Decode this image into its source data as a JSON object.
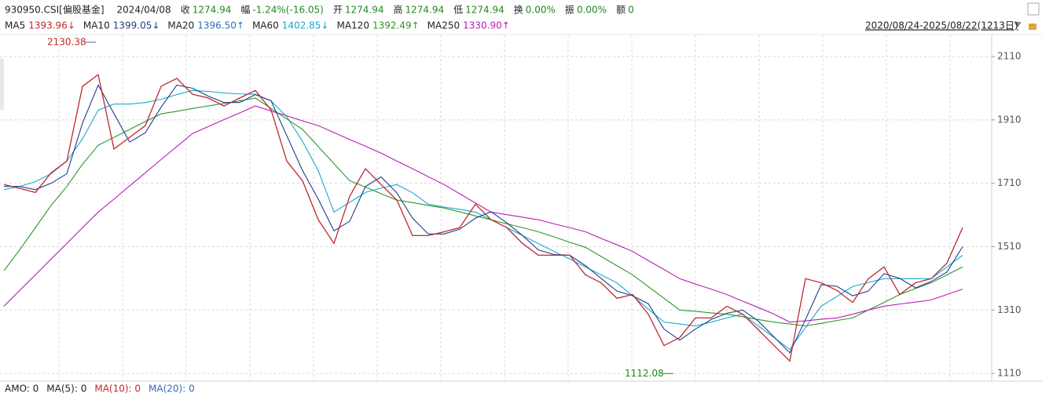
{
  "header": {
    "code": "930950.CSI[偏股基金]",
    "date": "2024/04/08",
    "fields": [
      {
        "label": "收",
        "value": "1274.94"
      },
      {
        "label": "幅",
        "value": "-1.24%(-16.05)"
      },
      {
        "label": "开",
        "value": "1274.94"
      },
      {
        "label": "高",
        "value": "1274.94"
      },
      {
        "label": "低",
        "value": "1274.94"
      },
      {
        "label": "换",
        "value": "0.00%"
      },
      {
        "label": "振",
        "value": "0.00%"
      },
      {
        "label": "额",
        "value": "0"
      }
    ],
    "range": "2020/08/24-2025/08/22(1213日)"
  },
  "ma_legend": [
    {
      "name": "MA5",
      "value": "1393.96↓",
      "color": "#c0282d"
    },
    {
      "name": "MA10",
      "value": "1399.05↓",
      "color": "#1d3f8c"
    },
    {
      "name": "MA20",
      "value": "1396.50↑",
      "color": "#2f6db8"
    },
    {
      "name": "MA60",
      "value": "1402.85↓",
      "color": "#1aa8cc"
    },
    {
      "name": "MA120",
      "value": "1392.49↑",
      "color": "#2b962b"
    },
    {
      "name": "MA250",
      "value": "1330.90↑",
      "color": "#b81cb8"
    }
  ],
  "footer": [
    {
      "text": "AMO: 0",
      "color": "#222222"
    },
    {
      "text": "MA(5): 0",
      "color": "#222222"
    },
    {
      "text": "MA(10): 0",
      "color": "#c0282d"
    },
    {
      "text": "MA(20): 0",
      "color": "#2f6db8"
    }
  ],
  "chart_data": {
    "type": "line",
    "categories": [
      null,
      null,
      null,
      null,
      null,
      null,
      null,
      null,
      null,
      null,
      null,
      null,
      null,
      null,
      null,
      null,
      null,
      null,
      null,
      null,
      null,
      null,
      null,
      null,
      null,
      null,
      null,
      null,
      null,
      null,
      null,
      null,
      null,
      null,
      null,
      null,
      null,
      null,
      null,
      null,
      null,
      null,
      null,
      null,
      null,
      null,
      null,
      null,
      null,
      null,
      null,
      null,
      null,
      null,
      null,
      null,
      null,
      null,
      null,
      null,
      null,
      null
    ],
    "ylim": [
      1088,
      2177
    ],
    "yticks": [
      1110,
      1310,
      1510,
      1710,
      1910,
      2110
    ],
    "grid": true,
    "high": 2130.38,
    "low": 1112.08,
    "series": [
      {
        "color": "#1aa8cc",
        "values": [
          1690,
          1700,
          1715,
          1740,
          1780,
          1850,
          1941,
          1960,
          1960,
          1965,
          1975,
          1990,
          2003,
          2000,
          1995,
          1992,
          1991,
          1970,
          1920,
          1842,
          1750,
          1619,
          1650,
          1681,
          1695,
          1706,
          1680,
          1644,
          1635,
          1628,
          1619,
          1595,
          1570,
          1545,
          1520,
          1495,
          1471,
          1446,
          1421,
          1396,
          1355,
          1313,
          1272,
          1266,
          1260,
          1272,
          1285,
          1297,
          1260,
          1223,
          1186,
          1255,
          1322,
          1353,
          1384,
          1397,
          1409,
          1409,
          1409,
          1409,
          1446,
          1483
        ]
      },
      {
        "color": "#2b962b",
        "values": [
          1434,
          1500,
          1570,
          1640,
          1700,
          1770,
          1830,
          1855,
          1880,
          1905,
          1929,
          1937,
          1946,
          1954,
          1962,
          1970,
          1979,
          1946,
          1913,
          1880,
          1826,
          1772,
          1718,
          1698,
          1677,
          1657,
          1649,
          1640,
          1632,
          1620,
          1607,
          1595,
          1582,
          1570,
          1557,
          1541,
          1524,
          1508,
          1479,
          1450,
          1421,
          1384,
          1347,
          1310,
          1306,
          1301,
          1297,
          1289,
          1280,
          1272,
          1266,
          1260,
          1268,
          1277,
          1285,
          1310,
          1334,
          1359,
          1378,
          1396,
          1421,
          1446
        ]
      },
      {
        "color": "#b81cb8",
        "values": [
          1322,
          1372,
          1421,
          1471,
          1520,
          1570,
          1619,
          1660,
          1702,
          1743,
          1785,
          1826,
          1867,
          1889,
          1911,
          1932,
          1954,
          1938,
          1923,
          1907,
          1892,
          1870,
          1848,
          1827,
          1805,
          1780,
          1756,
          1731,
          1706,
          1677,
          1648,
          1619,
          1611,
          1603,
          1595,
          1582,
          1570,
          1557,
          1536,
          1516,
          1495,
          1466,
          1438,
          1409,
          1392,
          1376,
          1359,
          1338,
          1318,
          1297,
          1272,
          1276,
          1281,
          1285,
          1297,
          1310,
          1322,
          1329,
          1335,
          1342,
          1359,
          1376
        ]
      },
      {
        "color": "#1d3f8c",
        "values": [
          1700,
          1700,
          1690,
          1710,
          1740,
          1900,
          2020,
          1930,
          1840,
          1870,
          1950,
          2020,
          2010,
          1985,
          1965,
          1965,
          1990,
          1970,
          1860,
          1750,
          1660,
          1560,
          1590,
          1700,
          1730,
          1680,
          1600,
          1550,
          1550,
          1565,
          1600,
          1620,
          1585,
          1545,
          1500,
          1485,
          1483,
          1450,
          1410,
          1370,
          1355,
          1330,
          1250,
          1215,
          1250,
          1280,
          1300,
          1310,
          1275,
          1225,
          1175,
          1280,
          1390,
          1385,
          1355,
          1370,
          1425,
          1410,
          1380,
          1400,
          1430,
          1510
        ]
      },
      {
        "color": "#c0282d",
        "values": [
          1706,
          1694,
          1681,
          1743,
          1780,
          2016,
          2053,
          1818,
          1855,
          1892,
          2016,
          2041,
          1991,
          1979,
          1954,
          1979,
          2003,
          1941,
          1780,
          1718,
          1595,
          1520,
          1669,
          1756,
          1706,
          1657,
          1545,
          1545,
          1557,
          1570,
          1644,
          1595,
          1570,
          1520,
          1483,
          1483,
          1483,
          1421,
          1396,
          1347,
          1359,
          1297,
          1198,
          1223,
          1285,
          1285,
          1322,
          1297,
          1248,
          1198,
          1149,
          1409,
          1396,
          1372,
          1334,
          1409,
          1446,
          1359,
          1396,
          1409,
          1458,
          1570
        ]
      }
    ]
  }
}
